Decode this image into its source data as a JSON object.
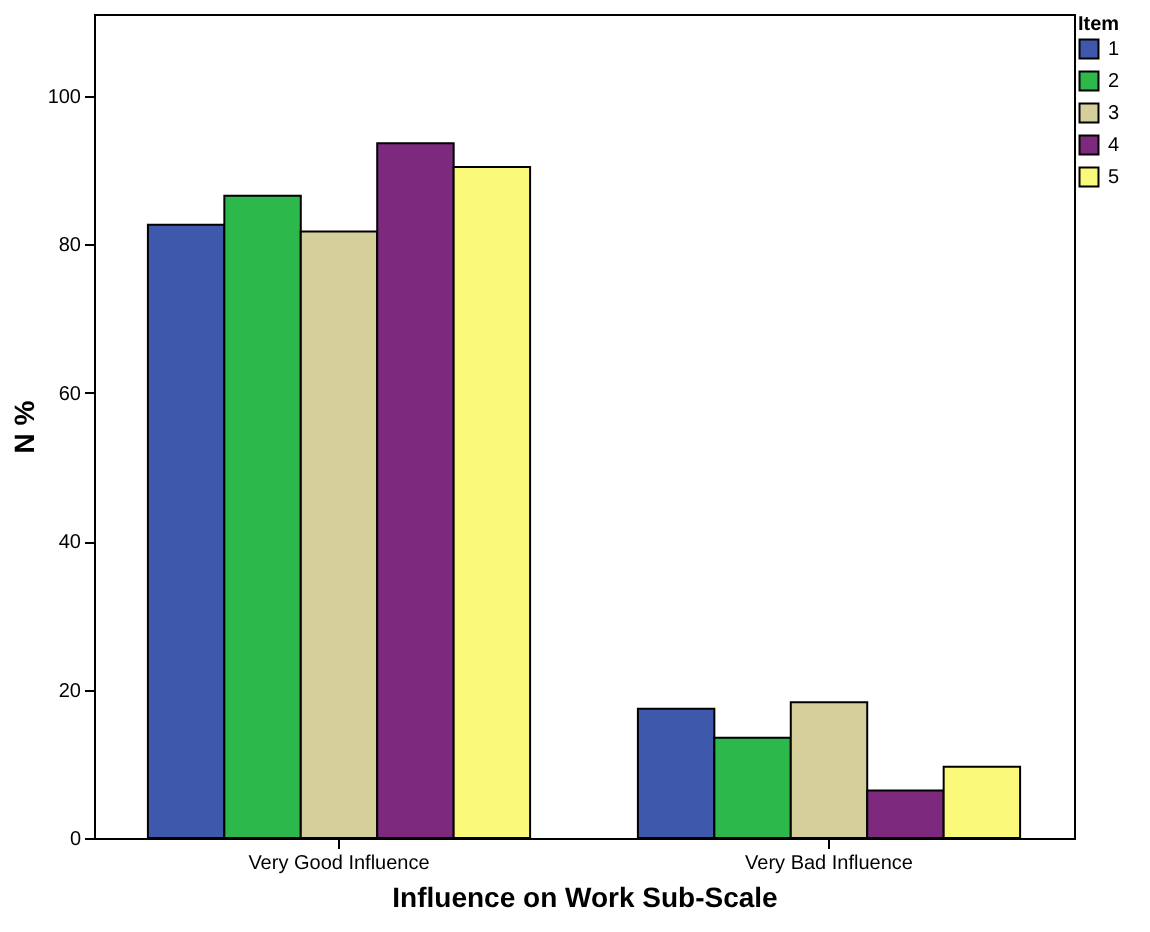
{
  "chart_data": {
    "type": "bar",
    "xlabel": "Influence on Work Sub-Scale",
    "ylabel": "N %",
    "legend_title": "Item",
    "categories": [
      "Very Good Influence",
      "Very Bad Influence"
    ],
    "series": [
      {
        "name": "1",
        "color": "#3e58ac",
        "values": [
          82.6,
          17.4
        ]
      },
      {
        "name": "2",
        "color": "#2db84b",
        "values": [
          86.5,
          13.5
        ]
      },
      {
        "name": "3",
        "color": "#d4cf9b",
        "values": [
          81.7,
          18.3
        ]
      },
      {
        "name": "4",
        "color": "#7d2a7e",
        "values": [
          93.6,
          6.4
        ]
      },
      {
        "name": "5",
        "color": "#fbf97a",
        "values": [
          90.4,
          9.6
        ]
      }
    ],
    "ylim": [
      0,
      111
    ],
    "yticks": [
      0,
      20,
      40,
      60,
      80,
      100
    ],
    "grid": false,
    "legend": "top right"
  }
}
